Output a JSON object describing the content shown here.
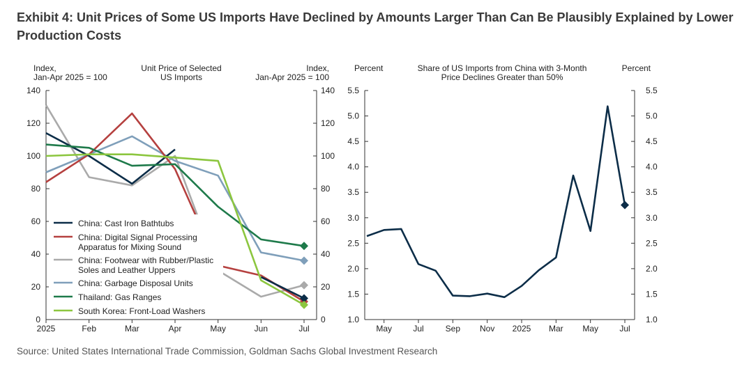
{
  "exhibit_title": "Exhibit 4: Unit Prices of Some US Imports Have Declined by Amounts Larger Than Can Be Plausibly Explained by Lower Production Costs",
  "source": "Source: United States International Trade Commission, Goldman Sachs Global Investment Research",
  "colors": {
    "navy": "#0c2d48",
    "red": "#b5403f",
    "gray": "#aaaaaa",
    "lightblue": "#7f9fba",
    "green": "#1e7a4a",
    "lightgreen": "#8cc63f"
  },
  "chart_data": [
    {
      "type": "line",
      "title": "Unit Price of Selected\nUS Imports",
      "ylabel_left": "Index,\nJan-Apr 2025 = 100",
      "ylabel_right": "Index,\nJan-Apr 2025 = 100",
      "categories": [
        "2025",
        "Feb",
        "Mar",
        "Apr",
        "May",
        "Jun",
        "Jul"
      ],
      "ylim": [
        0,
        140
      ],
      "yticks": [
        0,
        20,
        40,
        60,
        80,
        100,
        120,
        140
      ],
      "series": [
        {
          "name": "China: Footwear with Rubber/Plastic\nSoles and Leather Uppers",
          "color": "#aaaaaa",
          "values": [
            131,
            87,
            82,
            100,
            30,
            14,
            21
          ]
        },
        {
          "name": "China: Garbage Disposal Units",
          "color": "#7f9fba",
          "values": [
            90,
            101,
            112,
            97,
            88,
            41,
            36
          ]
        },
        {
          "name": "China: Digital Signal Processing\nApparatus for Mixing Sound",
          "color": "#b5403f",
          "values": [
            84,
            101,
            126,
            92,
            33,
            27,
            11
          ]
        },
        {
          "name": "China: Cast Iron Bathtubs",
          "color": "#0c2d48",
          "values": [
            114,
            100,
            83,
            104,
            null,
            26,
            13
          ]
        },
        {
          "name": "Thailand: Gas Ranges",
          "color": "#1e7a4a",
          "values": [
            107,
            105,
            94,
            95,
            69,
            49,
            45
          ]
        },
        {
          "name": "South Korea: Front-Load Washers",
          "color": "#8cc63f",
          "values": [
            100,
            101,
            101,
            99,
            97,
            24,
            9
          ]
        }
      ],
      "legend_order": [
        "China: Cast Iron Bathtubs",
        "China: Digital Signal Processing\nApparatus for Mixing Sound",
        "China: Footwear with Rubber/Plastic\nSoles and Leather Uppers",
        "China: Garbage Disposal Units",
        "Thailand: Gas Ranges",
        "South Korea: Front-Load Washers"
      ]
    },
    {
      "type": "line",
      "title": "Share of US Imports from China with 3-Month\nPrice Declines Greater than 50%",
      "ylabel_left": "Percent",
      "ylabel_right": "Percent",
      "ylim": [
        1.0,
        5.5
      ],
      "yticks": [
        "1.0",
        "1.5",
        "2.0",
        "2.5",
        "3.0",
        "3.5",
        "4.0",
        "4.5",
        "5.0",
        "5.5"
      ],
      "x_tick_labels": [
        "May",
        "Jul",
        "Sep",
        "Nov",
        "2025",
        "Mar",
        "May",
        "Jul"
      ],
      "x_tick_index": [
        1,
        3,
        5,
        7,
        9,
        11,
        13,
        15
      ],
      "series": [
        {
          "name": "Share",
          "color": "#0c2d48",
          "x": [
            "Apr 2024",
            "May 2024",
            "Jun 2024",
            "Jul 2024",
            "Aug 2024",
            "Sep 2024",
            "Oct 2024",
            "Nov 2024",
            "Dec 2024",
            "Jan 2025",
            "Feb 2025",
            "Mar 2025",
            "Apr 2025",
            "May 2025",
            "Jun 2025",
            "Jul 2025"
          ],
          "values": [
            2.64,
            2.76,
            2.78,
            2.09,
            1.96,
            1.47,
            1.46,
            1.51,
            1.44,
            1.66,
            1.97,
            2.22,
            3.83,
            2.74,
            5.19,
            3.25
          ]
        }
      ]
    }
  ]
}
